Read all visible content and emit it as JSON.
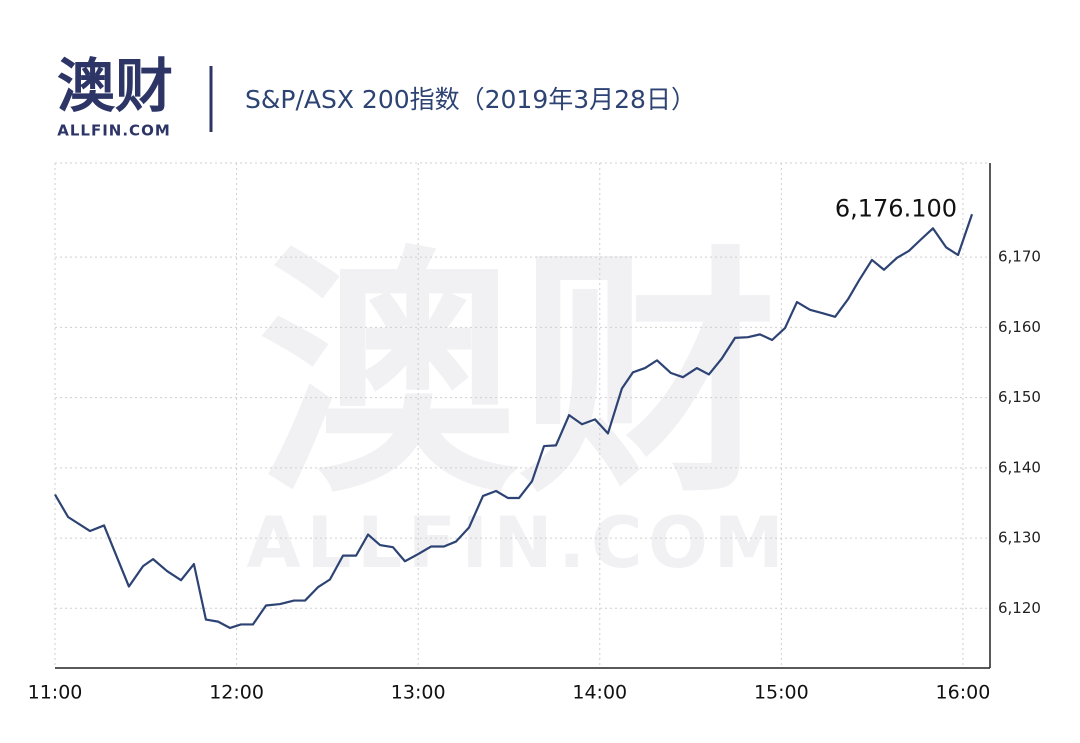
{
  "header": {
    "logo": "澳财",
    "logo_sub": "ALLFIN.COM"
  },
  "watermark": {
    "main": "澳财",
    "sub": "ALLFIN.COM"
  },
  "chart_data": {
    "type": "line",
    "title": "S&P/ASX 200指数（2019年3月28日）",
    "x": [
      11.0,
      11.072,
      11.193,
      11.27,
      11.407,
      11.485,
      11.54,
      11.617,
      11.694,
      11.765,
      11.831,
      11.898,
      11.964,
      12.024,
      12.09,
      12.162,
      12.239,
      12.316,
      12.377,
      12.448,
      12.514,
      12.586,
      12.658,
      12.724,
      12.79,
      12.861,
      12.927,
      12.999,
      13.071,
      13.142,
      13.208,
      13.28,
      13.357,
      13.429,
      13.495,
      13.555,
      13.627,
      13.693,
      13.759,
      13.831,
      13.902,
      13.974,
      14.045,
      14.122,
      14.183,
      14.249,
      14.315,
      14.392,
      14.458,
      14.535,
      14.601,
      14.673,
      14.745,
      14.816,
      14.882,
      14.949,
      15.02,
      15.086,
      15.158,
      15.229,
      15.296,
      15.367,
      15.428,
      15.499,
      15.565,
      15.637,
      15.703,
      15.764,
      15.835,
      15.907,
      15.973,
      16.05
    ],
    "series": [
      {
        "color": "#2d4373",
        "values": [
          6136.2,
          6133.0,
          6131.0,
          6131.8,
          6123.1,
          6126.0,
          6127.0,
          6125.3,
          6124.0,
          6126.3,
          6118.4,
          6118.1,
          6117.2,
          6117.7,
          6117.7,
          6120.4,
          6120.6,
          6121.1,
          6121.1,
          6123.0,
          6124.1,
          6127.5,
          6127.5,
          6130.5,
          6129.0,
          6128.7,
          6126.7,
          6127.7,
          6128.8,
          6128.8,
          6129.5,
          6131.5,
          6136.0,
          6136.7,
          6135.7,
          6135.7,
          6138.1,
          6143.1,
          6143.2,
          6147.5,
          6146.2,
          6146.9,
          6144.9,
          6151.3,
          6153.6,
          6154.2,
          6155.3,
          6153.5,
          6152.9,
          6154.2,
          6153.3,
          6155.6,
          6158.5,
          6158.6,
          6159.0,
          6158.2,
          6159.9,
          6163.6,
          6162.5,
          6162.0,
          6161.5,
          6164.0,
          6166.7,
          6169.6,
          6168.2,
          6169.9,
          6170.9,
          6172.4,
          6174.1,
          6171.4,
          6170.3,
          6176.1
        ],
        "last_label": "6,176.100"
      }
    ],
    "xlim": [
      11,
      16.149
    ],
    "xticks": [
      {
        "value": 11,
        "label": "11:00"
      },
      {
        "value": 12,
        "label": "12:00"
      },
      {
        "value": 13,
        "label": "13:00"
      },
      {
        "value": 14,
        "label": "14:00"
      },
      {
        "value": 15,
        "label": "15:00"
      },
      {
        "value": 16,
        "label": "16:00"
      }
    ],
    "ylim": [
      6111.5,
      6183.4
    ],
    "yticks": [
      {
        "value": 6120,
        "label": "6,120"
      },
      {
        "value": 6130,
        "label": "6,130"
      },
      {
        "value": 6140,
        "label": "6,140"
      },
      {
        "value": 6150,
        "label": "6,150"
      },
      {
        "value": 6160,
        "label": "6,160"
      },
      {
        "value": 6170,
        "label": "6,170"
      }
    ],
    "grid": true
  }
}
